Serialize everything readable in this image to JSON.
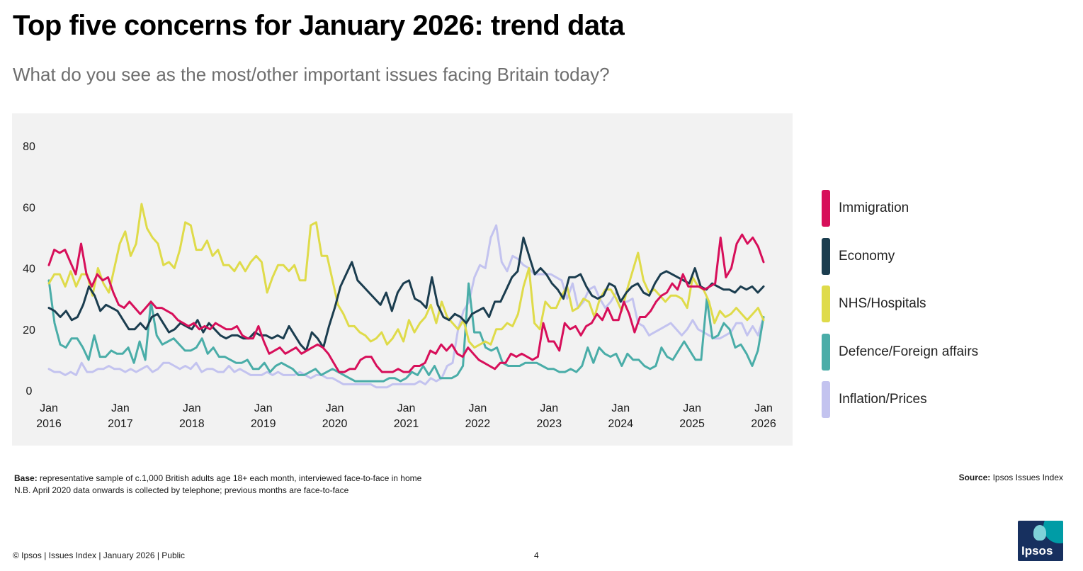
{
  "title": "Top five concerns for January 2026: trend data",
  "subtitle": "What do you see as the most/other important issues facing Britain today?",
  "colors": {
    "immigration": "#d70f5a",
    "economy": "#1b3d4f",
    "nhs": "#dfdb4a",
    "defence": "#4aada8",
    "inflation": "#c3c3ef",
    "chart_background": "#f2f2f2"
  },
  "notes": {
    "base_label": "Base:",
    "base_text": " representative sample of c.1,000 British adults age 18+ each month, interviewed face-to-face in home",
    "nb_text": "N.B. April 2020 data onwards is collected by telephone; previous months are face-to-face",
    "source_label": "Source:",
    "source_text": " Ipsos Issues Index"
  },
  "footer": {
    "copyright": "© Ipsos | Issues Index | January 2026 | Public",
    "page_number": "4"
  },
  "logo_text": "Ipsos",
  "chart_data": {
    "type": "line",
    "title": "Top five concerns for January 2026: trend data",
    "subtitle": "What do you see as the most/other important issues facing Britain today?",
    "ylim": [
      0,
      80
    ],
    "yticks": [
      0,
      20,
      40,
      60,
      80
    ],
    "x_start": "2016-01",
    "x_end": "2026-01",
    "xtick_labels": [
      {
        "year": 2016,
        "line1": "Jan",
        "line2": "2016"
      },
      {
        "year": 2017,
        "line1": "Jan",
        "line2": "2017"
      },
      {
        "year": 2018,
        "line1": "Jan",
        "line2": "2018"
      },
      {
        "year": 2019,
        "line1": "Jan",
        "line2": "2019"
      },
      {
        "year": 2020,
        "line1": "Jan",
        "line2": "2020"
      },
      {
        "year": 2021,
        "line1": "Jan",
        "line2": "2021"
      },
      {
        "year": 2022,
        "line1": "Jan",
        "line2": "2022"
      },
      {
        "year": 2023,
        "line1": "Jan",
        "line2": "2023"
      },
      {
        "year": 2024,
        "line1": "Jan",
        "line2": "2024"
      },
      {
        "year": 2025,
        "line1": "Jan",
        "line2": "2025"
      },
      {
        "year": 2026,
        "line1": "Jan",
        "line2": "2026"
      }
    ],
    "grid": false,
    "legend_position": "right",
    "series": [
      {
        "name": "Immigration",
        "color": "#d70f5a",
        "values": [
          41,
          46,
          45,
          46,
          42,
          38,
          48,
          38,
          34,
          38,
          36,
          37,
          32,
          28,
          27,
          29,
          27,
          25,
          27,
          29,
          27,
          27,
          26,
          25,
          23,
          22,
          21,
          22,
          20,
          21,
          20,
          22,
          21,
          20,
          20,
          21,
          18,
          17,
          17,
          21,
          16,
          12,
          13,
          14,
          12,
          13,
          14,
          12,
          13,
          14,
          15,
          14,
          12,
          9,
          6,
          6,
          7,
          7,
          10,
          11,
          11,
          8,
          6,
          6,
          6,
          7,
          6,
          6,
          8,
          8,
          9,
          13,
          12,
          15,
          13,
          15,
          12,
          11,
          14,
          12,
          10,
          9,
          8,
          7,
          9,
          9,
          12,
          11,
          12,
          11,
          10,
          11,
          22,
          16,
          16,
          13,
          22,
          20,
          21,
          18,
          21,
          22,
          25,
          23,
          27,
          23,
          23,
          29,
          25,
          19,
          24,
          24,
          26,
          29,
          31,
          32,
          35,
          33,
          38,
          34,
          34,
          34,
          33,
          34,
          35,
          50,
          37,
          40,
          48,
          51,
          48,
          50,
          47,
          42
        ]
      },
      {
        "name": "Economy",
        "color": "#1b3d4f",
        "values": [
          27,
          26,
          24,
          26,
          23,
          24,
          28,
          34,
          31,
          26,
          28,
          27,
          26,
          23,
          20,
          20,
          22,
          20,
          24,
          25,
          22,
          19,
          20,
          22,
          21,
          20,
          23,
          19,
          22,
          20,
          18,
          17,
          18,
          18,
          17,
          17,
          19,
          18,
          18,
          17,
          18,
          17,
          21,
          18,
          15,
          13,
          19,
          17,
          14,
          21,
          27,
          34,
          38,
          42,
          36,
          34,
          32,
          30,
          28,
          32,
          26,
          32,
          35,
          36,
          30,
          29,
          27,
          37,
          28,
          24,
          23,
          25,
          24,
          22,
          25,
          26,
          27,
          24,
          29,
          29,
          33,
          37,
          39,
          50,
          44,
          38,
          40,
          38,
          35,
          33,
          30,
          37,
          37,
          38,
          34,
          31,
          30,
          31,
          35,
          34,
          29,
          32,
          34,
          35,
          32,
          31,
          35,
          38,
          39,
          38,
          37,
          36,
          35,
          40,
          34,
          33,
          35,
          34,
          33,
          33,
          32,
          34,
          33,
          34,
          32,
          34
        ]
      },
      {
        "name": "NHS/Hospitals",
        "color": "#dfdb4a",
        "values": [
          35,
          38,
          38,
          34,
          39,
          34,
          38,
          38,
          31,
          40,
          35,
          32,
          40,
          48,
          52,
          44,
          48,
          61,
          53,
          50,
          48,
          41,
          42,
          40,
          46,
          55,
          54,
          46,
          46,
          49,
          44,
          46,
          41,
          41,
          39,
          42,
          39,
          42,
          44,
          42,
          32,
          37,
          41,
          41,
          39,
          41,
          36,
          36,
          54,
          55,
          44,
          44,
          36,
          28,
          25,
          21,
          21,
          19,
          18,
          16,
          17,
          19,
          15,
          17,
          20,
          16,
          23,
          19,
          22,
          24,
          28,
          22,
          29,
          24,
          22,
          20,
          23,
          16,
          14,
          15,
          16,
          15,
          20,
          20,
          22,
          21,
          25,
          34,
          40,
          22,
          20,
          29,
          27,
          27,
          31,
          34,
          26,
          27,
          30,
          29,
          24,
          30,
          33,
          33,
          30,
          26,
          33,
          39,
          45,
          36,
          32,
          33,
          31,
          29,
          31,
          31,
          30,
          27,
          37,
          34,
          33,
          29,
          22,
          26,
          24,
          25,
          27,
          25,
          23,
          25,
          27,
          23
        ]
      },
      {
        "name": "Defence/Foreign affairs",
        "color": "#4aada8",
        "values": [
          36,
          22,
          15,
          14,
          17,
          17,
          14,
          10,
          18,
          11,
          11,
          13,
          12,
          12,
          14,
          9,
          16,
          10,
          29,
          18,
          15,
          16,
          17,
          15,
          13,
          13,
          14,
          17,
          12,
          14,
          11,
          11,
          10,
          9,
          9,
          10,
          7,
          7,
          9,
          6,
          8,
          9,
          8,
          7,
          5,
          5,
          6,
          7,
          5,
          6,
          7,
          6,
          5,
          4,
          3,
          3,
          3,
          3,
          3,
          3,
          4,
          4,
          3,
          4,
          6,
          5,
          8,
          5,
          8,
          4,
          4,
          4,
          5,
          8,
          35,
          19,
          19,
          14,
          13,
          14,
          9,
          8,
          8,
          8,
          9,
          9,
          9,
          8,
          7,
          7,
          6,
          6,
          7,
          6,
          8,
          14,
          9,
          14,
          12,
          11,
          12,
          8,
          12,
          10,
          10,
          8,
          7,
          8,
          14,
          11,
          10,
          13,
          16,
          13,
          10,
          10,
          30,
          17,
          18,
          22,
          20,
          14,
          15,
          12,
          8,
          13,
          24
        ]
      },
      {
        "name": "Inflation/Prices",
        "color": "#c3c3ef",
        "values": [
          7,
          6,
          6,
          5,
          6,
          5,
          9,
          6,
          6,
          7,
          7,
          8,
          7,
          7,
          6,
          7,
          6,
          7,
          8,
          6,
          7,
          9,
          9,
          8,
          7,
          8,
          7,
          9,
          6,
          7,
          7,
          6,
          6,
          8,
          6,
          7,
          6,
          5,
          5,
          5,
          6,
          5,
          6,
          5,
          5,
          5,
          6,
          5,
          4,
          5,
          5,
          4,
          4,
          3,
          2,
          2,
          2,
          2,
          2,
          2,
          1,
          1,
          1,
          2,
          2,
          2,
          2,
          2,
          3,
          2,
          4,
          3,
          4,
          8,
          9,
          20,
          26,
          29,
          37,
          41,
          40,
          50,
          54,
          42,
          39,
          44,
          43,
          41,
          40,
          38,
          38,
          38,
          38,
          37,
          36,
          30,
          35,
          27,
          29,
          33,
          34,
          30,
          27,
          29,
          32,
          29,
          29,
          30,
          22,
          21,
          18,
          19,
          20,
          21,
          22,
          20,
          18,
          20,
          23,
          20,
          19,
          18,
          17,
          17,
          18,
          19,
          22,
          22,
          18,
          21,
          18,
          24
        ]
      }
    ]
  }
}
